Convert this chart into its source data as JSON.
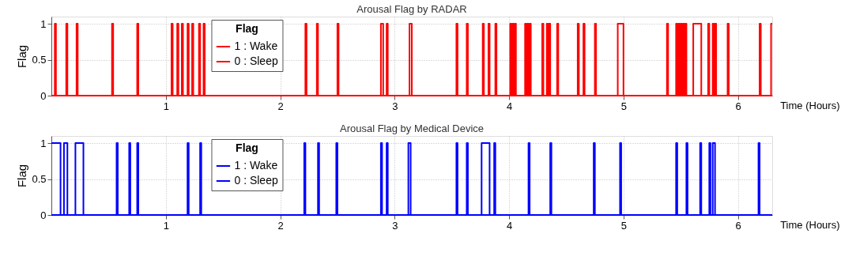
{
  "chart_data": [
    {
      "type": "step",
      "title": "Arousal Flag by RADAR",
      "xlabel": "Time (Hours)",
      "ylabel": "Flag",
      "legend_title": "Flag",
      "legend": "top left",
      "grid": true,
      "marker": "none",
      "line_style": "solid",
      "xlim": [
        0,
        6.3
      ],
      "xticks": [
        1,
        2,
        3,
        4,
        5,
        6
      ],
      "ylim": [
        0,
        1.1
      ],
      "yticks": [
        0,
        0.5,
        1
      ],
      "series": [
        {
          "name": "1 : Wake",
          "color": "#ff0000",
          "x": [
            0,
            0.03,
            0.04,
            0.13,
            0.14,
            0.22,
            0.23,
            0.53,
            0.54,
            0.75,
            0.76,
            1.05,
            1.06,
            1.1,
            1.11,
            1.14,
            1.15,
            1.19,
            1.2,
            1.23,
            1.24,
            1.29,
            1.3,
            1.33,
            1.34,
            2.22,
            2.23,
            2.32,
            2.33,
            2.5,
            2.51,
            2.88,
            2.9,
            2.93,
            2.94,
            3.13,
            3.15,
            3.54,
            3.55,
            3.63,
            3.64,
            3.77,
            3.78,
            3.82,
            3.83,
            3.88,
            3.89,
            4.01,
            4.02,
            4.03,
            4.04,
            4.05,
            4.06,
            4.14,
            4.15,
            4.16,
            4.17,
            4.18,
            4.19,
            4.29,
            4.3,
            4.33,
            4.34,
            4.35,
            4.36,
            4.42,
            4.43,
            4.6,
            4.61,
            4.65,
            4.66,
            4.75,
            4.76,
            4.95,
            5.0,
            5.38,
            5.39,
            5.46,
            5.47,
            5.48,
            5.49,
            5.5,
            5.51,
            5.52,
            5.53,
            5.54,
            5.55,
            5.61,
            5.68,
            5.74,
            5.75,
            5.78,
            5.79,
            5.8,
            5.81,
            5.91,
            5.92,
            6.19,
            6.2,
            6.29,
            6.3
          ],
          "values": [
            0,
            1,
            0,
            1,
            0,
            1,
            0,
            1,
            0,
            1,
            0,
            1,
            0,
            1,
            0,
            1,
            0,
            1,
            0,
            1,
            0,
            1,
            0,
            1,
            0,
            1,
            0,
            1,
            0,
            1,
            0,
            1,
            0,
            1,
            0,
            1,
            0,
            1,
            0,
            1,
            0,
            1,
            0,
            1,
            0,
            1,
            0,
            1,
            0,
            1,
            0,
            1,
            0,
            1,
            0,
            1,
            0,
            1,
            0,
            1,
            0,
            1,
            0,
            1,
            0,
            1,
            0,
            1,
            0,
            1,
            0,
            1,
            0,
            1,
            0,
            1,
            0,
            1,
            0,
            1,
            0,
            1,
            0,
            1,
            0,
            1,
            0,
            1,
            0,
            1,
            0,
            1,
            0,
            1,
            0,
            1,
            0,
            1,
            0,
            1,
            1
          ]
        },
        {
          "name": "0 : Sleep",
          "color": "#ff0000",
          "x": [
            0,
            6.3
          ],
          "values": [
            0,
            0
          ]
        }
      ]
    },
    {
      "type": "step",
      "title": "Arousal Flag by Medical Device",
      "xlabel": "Time (Hours)",
      "ylabel": "Flag",
      "legend_title": "Flag",
      "legend": "top left",
      "grid": true,
      "marker": "none",
      "line_style": "solid",
      "xlim": [
        0,
        6.3
      ],
      "xticks": [
        1,
        2,
        3,
        4,
        5,
        6
      ],
      "ylim": [
        0,
        1.1
      ],
      "yticks": [
        0,
        0.5,
        1
      ],
      "series": [
        {
          "name": "1 : Wake",
          "color": "#0000ff",
          "x": [
            0,
            0.08,
            0.11,
            0.14,
            0.21,
            0.28,
            0.57,
            0.58,
            0.68,
            0.69,
            0.75,
            0.76,
            1.19,
            1.2,
            1.3,
            1.31,
            2.21,
            2.22,
            2.33,
            2.34,
            2.49,
            2.5,
            2.88,
            2.89,
            2.93,
            2.94,
            3.12,
            3.14,
            3.54,
            3.55,
            3.63,
            3.64,
            3.76,
            3.83,
            3.87,
            3.88,
            4.17,
            4.18,
            4.36,
            4.37,
            4.74,
            4.75,
            4.97,
            4.98,
            5.46,
            5.47,
            5.55,
            5.56,
            5.67,
            5.68,
            5.75,
            5.76,
            5.78,
            5.8,
            6.18,
            6.19,
            6.3
          ],
          "values": [
            1,
            0,
            1,
            0,
            1,
            0,
            1,
            0,
            1,
            0,
            1,
            0,
            1,
            0,
            1,
            0,
            1,
            0,
            1,
            0,
            1,
            0,
            1,
            0,
            1,
            0,
            1,
            0,
            1,
            0,
            1,
            0,
            1,
            0,
            1,
            0,
            1,
            0,
            1,
            0,
            1,
            0,
            1,
            0,
            1,
            0,
            1,
            0,
            1,
            0,
            1,
            0,
            1,
            0,
            1,
            0,
            0
          ]
        },
        {
          "name": "0 : Sleep",
          "color": "#0000ff",
          "x": [
            0,
            6.3
          ],
          "values": [
            0,
            0
          ]
        }
      ]
    }
  ]
}
